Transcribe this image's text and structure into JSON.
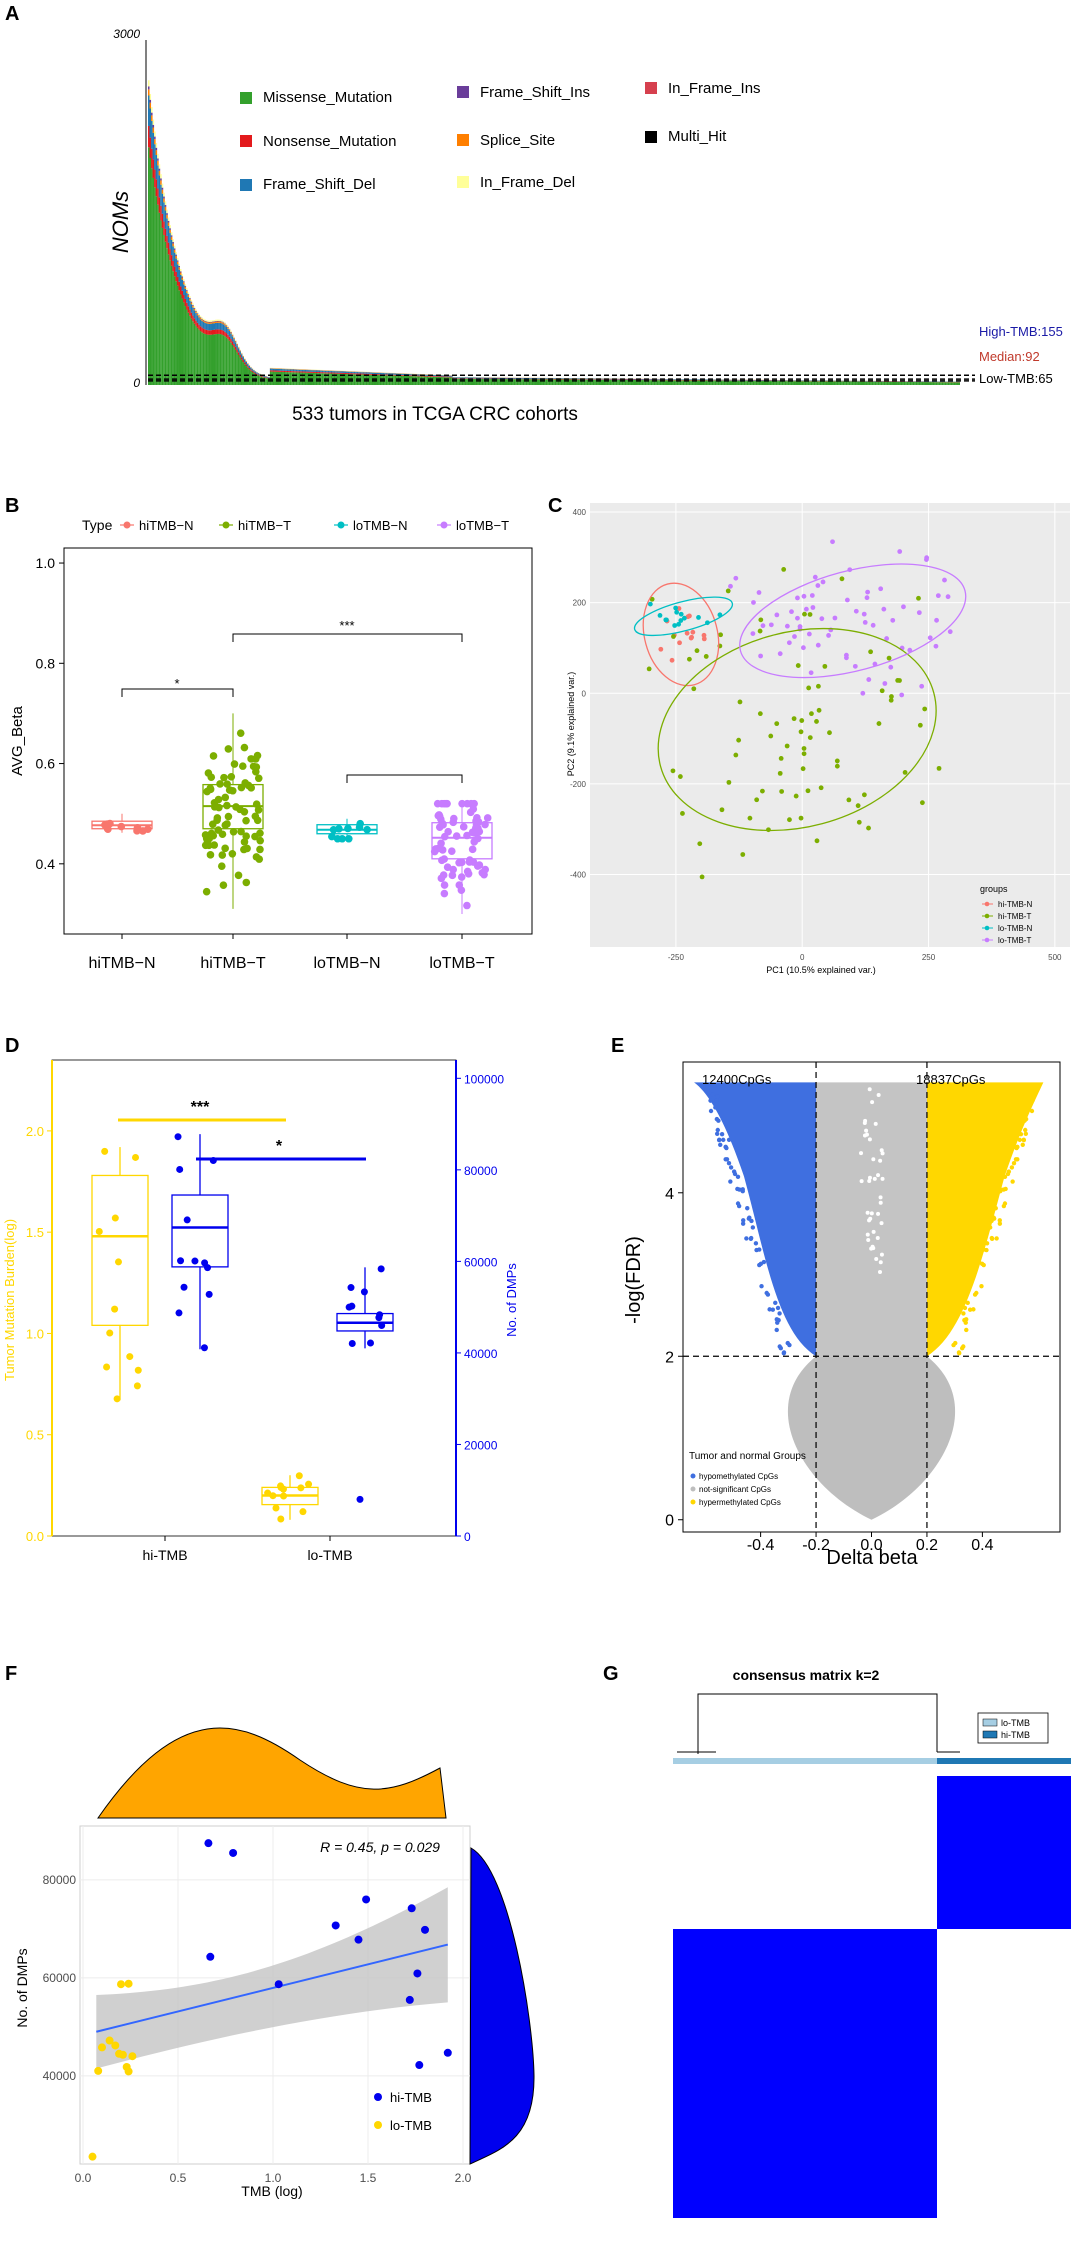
{
  "colors": {
    "missense": "#33a02c",
    "nonsense": "#e31a1c",
    "fs_del": "#1f78b4",
    "fs_ins": "#6a3d9a",
    "splice": "#ff7f00",
    "inframe_del": "#ffff99",
    "inframe_ins": "#d6404e",
    "multi": "#000000",
    "hiN": "#f8766d",
    "hiT": "#7cae00",
    "loN": "#00bfc4",
    "loT": "#c77cff",
    "gold": "#ffd700",
    "blue": "#0000ee",
    "grey": "#bebebe",
    "hypo": "#3f6fe0",
    "teal_dark": "#1f78b4",
    "teal_light": "#a6cee3",
    "orange": "#ffa500",
    "reg": "#3366ff"
  },
  "panels": {
    "A": "A",
    "B": "B",
    "C": "C",
    "D": "D",
    "E": "E",
    "F": "F",
    "G": "G"
  },
  "chart_data": [
    {
      "panel": "A",
      "type": "bar",
      "title": "",
      "ylabel": "NOMs",
      "xlabel": "533 tumors in TCGA CRC cohorts",
      "yticks": [
        "3000",
        "0"
      ],
      "ylim": [
        0,
        3000
      ],
      "n_samples": 533,
      "legend": [
        "Missense_Mutation",
        "Nonsense_Mutation",
        "Frame_Shift_Del",
        "Frame_Shift_Ins",
        "Splice_Site",
        "In_Frame_Del",
        "In_Frame_Ins",
        "Multi_Hit"
      ],
      "thresholds": [
        {
          "label": "High-TMB:155",
          "value": 155,
          "color": "#1a1aa6"
        },
        {
          "label": "Median:92",
          "value": 92,
          "color": "#c0392b"
        },
        {
          "label": "Low-TMB:65",
          "value": 65,
          "color": "#000000"
        }
      ]
    },
    {
      "panel": "B",
      "type": "box",
      "ylabel": "AVG_Beta",
      "legend_title": "Type",
      "categories": [
        "hiTMB−N",
        "hiTMB−T",
        "loTMB−N",
        "loTMB−T"
      ],
      "legend": [
        "hiTMB−N",
        "hiTMB−T",
        "loTMB−N",
        "loTMB−T"
      ],
      "yticks": [
        "1.0",
        "0.8",
        "0.6",
        "0.4"
      ],
      "ylim": [
        0.26,
        1.03
      ],
      "boxes": [
        {
          "q1": 0.47,
          "median": 0.477,
          "q3": 0.485,
          "low": 0.462,
          "high": 0.5
        },
        {
          "q1": 0.47,
          "median": 0.515,
          "q3": 0.558,
          "low": 0.31,
          "high": 0.7
        },
        {
          "q1": 0.46,
          "median": 0.468,
          "q3": 0.478,
          "low": 0.45,
          "high": 0.49
        },
        {
          "q1": 0.41,
          "median": 0.452,
          "q3": 0.482,
          "low": 0.3,
          "high": 0.52
        }
      ],
      "annotations": [
        "*",
        "***"
      ]
    },
    {
      "panel": "C",
      "type": "scatter",
      "xlabel": "PC1 (10.5% explained var.)",
      "ylabel": "PC2 (9.1% explained var.)",
      "xticks": [
        "-250",
        "0",
        "250",
        "500"
      ],
      "yticks": [
        "400",
        "200",
        "0",
        "-200",
        "-400"
      ],
      "xlim": [
        -420,
        530
      ],
      "ylim": [
        -560,
        420
      ],
      "legend_title": "groups",
      "legend": [
        "hi-TMB-N",
        "hi-TMB-T",
        "lo-TMB-N",
        "lo-TMB-T"
      ]
    },
    {
      "panel": "D",
      "type": "box",
      "categories": [
        "hi-TMB",
        "lo-TMB"
      ],
      "ylabel": "Tumor Mutation Burden(log)",
      "ylabel2": "No. of DMPs",
      "yticks": [
        "0.0",
        "0.5",
        "1.0",
        "1.5",
        "2.0"
      ],
      "yticks2": [
        "0",
        "20000",
        "40000",
        "60000",
        "80000",
        "100000"
      ],
      "ylim": [
        0,
        2.35
      ],
      "ylim2": [
        0,
        104000
      ],
      "annotations": [
        "***",
        "*"
      ],
      "tmb_boxes": [
        {
          "q1": 1.04,
          "median": 1.48,
          "q3": 1.78,
          "low": 0.67,
          "high": 1.92
        },
        {
          "q1": 0.155,
          "median": 0.2,
          "q3": 0.24,
          "low": 0.08,
          "high": 0.3
        }
      ],
      "dmp_boxes": [
        {
          "q1": 58800,
          "median": 67400,
          "q3": 74500,
          "low": 40800,
          "high": 87800
        },
        {
          "q1": 44800,
          "median": 46600,
          "q3": 48600,
          "low": 41000,
          "high": 58700
        }
      ],
      "dmp_outlier": 8000
    },
    {
      "panel": "E",
      "type": "scatter",
      "xlabel": "Delta beta",
      "ylabel": "-log(FDR)",
      "xticks": [
        "-0.4",
        "-0.2",
        "0.0",
        "0.2",
        "0.4"
      ],
      "yticks": [
        "0",
        "2",
        "4"
      ],
      "xlim": [
        -0.68,
        0.68
      ],
      "ylim": [
        -0.15,
        5.6
      ],
      "annotations": [
        "12400CpGs",
        "18837CpGs"
      ],
      "legend_title": "Tumor and normal Groups",
      "legend": [
        "hypomethylated CpGs",
        "not-significant CpGs",
        "hypermethylated CpGs"
      ]
    },
    {
      "panel": "F",
      "type": "scatter",
      "xlabel": "TMB (log)",
      "ylabel": "No. of DMPs",
      "xticks": [
        "0.0",
        "0.5",
        "1.0",
        "1.5",
        "2.0"
      ],
      "yticks": [
        "40000",
        "60000",
        "80000"
      ],
      "xlim": [
        0,
        2.0
      ],
      "ylim": [
        22000,
        91000
      ],
      "stat": "R = 0.45, p = 0.029",
      "legend": [
        "hi-TMB",
        "lo-TMB"
      ],
      "regression": {
        "x0": 0.07,
        "y0": 49000,
        "x1": 1.92,
        "y1": 66800
      },
      "series": [
        {
          "name": "hi-TMB",
          "x": [
            0.66,
            0.79,
            0.67,
            1.03,
            1.33,
            1.45,
            1.49,
            1.73,
            1.8,
            1.72,
            1.76,
            1.92,
            1.77
          ],
          "y": [
            87500,
            85500,
            64300,
            58700,
            70700,
            67800,
            76000,
            74200,
            69800,
            55500,
            60900,
            44700,
            42200
          ]
        },
        {
          "name": "lo-TMB",
          "x": [
            0.05,
            0.08,
            0.1,
            0.14,
            0.17,
            0.19,
            0.2,
            0.24,
            0.26,
            0.21,
            0.23,
            0.24
          ],
          "y": [
            23500,
            41000,
            45800,
            47200,
            46200,
            44500,
            58700,
            58800,
            44000,
            44300,
            41800,
            40900
          ]
        }
      ]
    },
    {
      "panel": "G",
      "type": "heatmap",
      "title": "consensus matrix k=2",
      "legend": [
        "lo-TMB",
        "hi-TMB"
      ]
    }
  ]
}
